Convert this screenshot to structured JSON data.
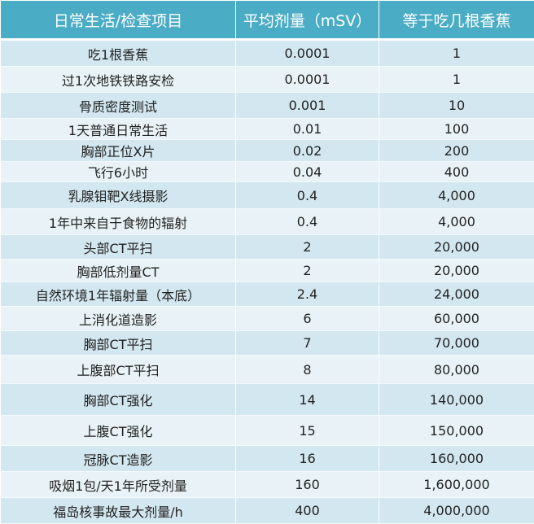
{
  "table": {
    "headers": [
      "日常生活/检查项目",
      "平均剂量（mSV）",
      "等于吃几根香蕉"
    ],
    "rows": [
      [
        "吃1根香蕉",
        "0.0001",
        "1"
      ],
      [
        "过1次地铁铁路安检",
        "0.0001",
        "1"
      ],
      [
        "骨质密度测试",
        "0.001",
        "10"
      ],
      [
        "1天普通日常生活",
        "0.01",
        "100"
      ],
      [
        "胸部正位X片",
        "0.02",
        "200"
      ],
      [
        "飞行6小时",
        "0.04",
        "400"
      ],
      [
        "乳腺钼靶X线摄影",
        "0.4",
        "4,000"
      ],
      [
        "1年中来自于食物的辐射",
        "0.4",
        "4,000"
      ],
      [
        "头部CT平扫",
        "2",
        "20,000"
      ],
      [
        "胸部低剂量CT",
        "2",
        "20,000"
      ],
      [
        "自然环境1年辐射量（本底）",
        "2.4",
        "24,000"
      ],
      [
        "上消化道造影",
        "6",
        "60,000"
      ],
      [
        "胸部CT平扫",
        "7",
        "70,000"
      ],
      [
        "上腹部CT平扫",
        "8",
        "80,000"
      ],
      [
        "胸部CT强化",
        "14",
        "140,000"
      ],
      [
        "上腹CT强化",
        "15",
        "150,000"
      ],
      [
        "冠脉CT造影",
        "16",
        "160,000"
      ],
      [
        "吸烟1包/天1年所受剂量",
        "160",
        "1,600,000"
      ],
      [
        "福岛核事故最大剂量/h",
        "400",
        "4,000,000"
      ]
    ]
  },
  "colors": {
    "header": "#4BACC6",
    "row_dark": "#D2E7EF",
    "row_light": "#E9F3F7"
  }
}
